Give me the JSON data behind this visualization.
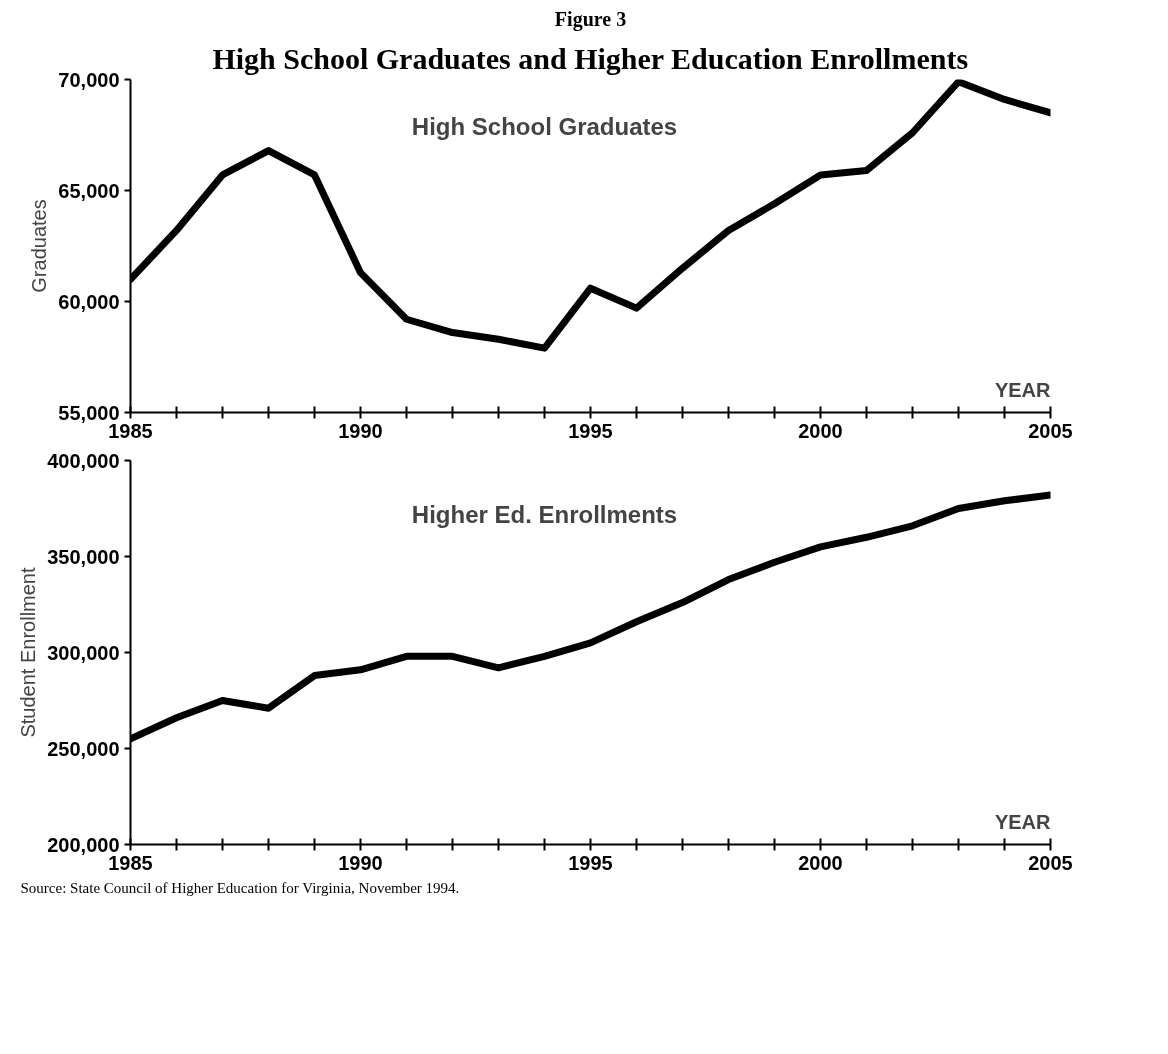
{
  "chart_data": [
    {
      "type": "line",
      "title": "High School Graduates and Higher Education Enrollments",
      "annotations": [
        "Figure 3"
      ],
      "ylabel": "Graduates",
      "xlabel": "YEAR",
      "x": [
        1985,
        1986,
        1987,
        1988,
        1989,
        1990,
        1991,
        1992,
        1993,
        1994,
        1995,
        1996,
        1997,
        1998,
        1999,
        2000,
        2001,
        2002,
        2003,
        2004,
        2005
      ],
      "series": [
        {
          "name": "High School Graduates",
          "color": "#000000",
          "values": [
            61000,
            63200,
            65700,
            66800,
            65700,
            61300,
            59200,
            58600,
            58300,
            57900,
            60600,
            59700,
            61500,
            63200,
            64400,
            65700,
            65900,
            67600,
            69900,
            69100,
            68500
          ]
        }
      ],
      "xlim": [
        1985,
        2005
      ],
      "ylim": [
        55000,
        70000
      ],
      "xticks": [
        1985,
        {
          "value": 1986,
          "label": null
        },
        {
          "value": 1987,
          "label": null
        },
        {
          "value": 1988,
          "label": null
        },
        {
          "value": 1989,
          "label": null
        },
        1990,
        {
          "value": 1991,
          "label": null
        },
        {
          "value": 1992,
          "label": null
        },
        {
          "value": 1993,
          "label": null
        },
        {
          "value": 1994,
          "label": null
        },
        1995,
        {
          "value": 1996,
          "label": null
        },
        {
          "value": 1997,
          "label": null
        },
        {
          "value": 1998,
          "label": null
        },
        {
          "value": 1999,
          "label": null
        },
        2000,
        {
          "value": 2001,
          "label": null
        },
        {
          "value": 2002,
          "label": null
        },
        {
          "value": 2003,
          "label": null
        },
        {
          "value": 2004,
          "label": null
        },
        2005
      ],
      "yticks": [
        {
          "value": 55000,
          "label": "55,000"
        },
        {
          "value": 60000,
          "label": "60,000"
        },
        {
          "value": 65000,
          "label": "65,000"
        },
        {
          "value": 70000,
          "label": "70,000"
        }
      ],
      "grid": false,
      "legend": false
    },
    {
      "type": "line",
      "annotations": [
        "Source:  State Council of Higher Education for Virginia, November 1994."
      ],
      "ylabel": "Student Enrollment",
      "xlabel": "YEAR",
      "x": [
        1985,
        1986,
        1987,
        1988,
        1989,
        1990,
        1991,
        1992,
        1993,
        1994,
        1995,
        1996,
        1997,
        1998,
        1999,
        2000,
        2001,
        2002,
        2003,
        2004,
        2005
      ],
      "series": [
        {
          "name": "Higher Ed. Enrollments",
          "color": "#000000",
          "values": [
            255000,
            266000,
            275000,
            271000,
            288000,
            291000,
            298000,
            298000,
            292000,
            298000,
            305000,
            316000,
            326000,
            338000,
            347000,
            355000,
            360000,
            366000,
            375000,
            379000,
            382000
          ]
        }
      ],
      "xlim": [
        1985,
        2005
      ],
      "ylim": [
        200000,
        400000
      ],
      "xticks": [
        1985,
        {
          "value": 1986,
          "label": null
        },
        {
          "value": 1987,
          "label": null
        },
        {
          "value": 1988,
          "label": null
        },
        {
          "value": 1989,
          "label": null
        },
        1990,
        {
          "value": 1991,
          "label": null
        },
        {
          "value": 1992,
          "label": null
        },
        {
          "value": 1993,
          "label": null
        },
        {
          "value": 1994,
          "label": null
        },
        1995,
        {
          "value": 1996,
          "label": null
        },
        {
          "value": 1997,
          "label": null
        },
        {
          "value": 1998,
          "label": null
        },
        {
          "value": 1999,
          "label": null
        },
        2000,
        {
          "value": 2001,
          "label": null
        },
        {
          "value": 2002,
          "label": null
        },
        {
          "value": 2003,
          "label": null
        },
        {
          "value": 2004,
          "label": null
        },
        2005
      ],
      "yticks": [
        {
          "value": 200000,
          "label": "200,000"
        },
        {
          "value": 250000,
          "label": "250,000"
        },
        {
          "value": 300000,
          "label": "300,000"
        },
        {
          "value": 350000,
          "label": "350,000"
        },
        {
          "value": 400000,
          "label": "400,000"
        }
      ],
      "grid": false,
      "legend": false
    }
  ]
}
